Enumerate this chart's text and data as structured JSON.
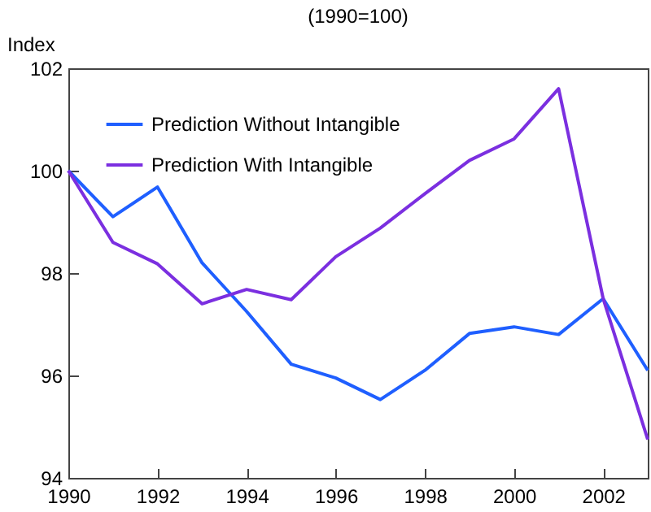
{
  "chart_data": {
    "type": "line",
    "title": "(1990=100)",
    "ylabel": "Index",
    "x": [
      1990,
      1991,
      1992,
      1993,
      1994,
      1995,
      1996,
      1997,
      1998,
      1999,
      2000,
      2001,
      2002,
      2003
    ],
    "series": [
      {
        "name": "Prediction Without Intangible",
        "color": "#1f5fff",
        "values": [
          100,
          99.1,
          99.68,
          98.2,
          97.25,
          96.22,
          95.95,
          95.53,
          96.1,
          96.82,
          96.95,
          96.8,
          97.5,
          96.1
        ]
      },
      {
        "name": "Prediction With Intangible",
        "color": "#7b2fe0",
        "values": [
          100,
          98.6,
          98.18,
          97.4,
          97.68,
          97.48,
          98.32,
          98.88,
          99.55,
          100.2,
          100.62,
          101.6,
          97.5,
          94.75
        ]
      }
    ],
    "xlim": [
      1990,
      2003
    ],
    "xticks": [
      1990,
      1992,
      1994,
      1996,
      1998,
      2000,
      2002
    ],
    "ylim": [
      94,
      102
    ],
    "yticks": [
      94,
      96,
      98,
      100,
      102
    ],
    "grid": false,
    "legend": "top left",
    "marker": "none",
    "line_style": "solid"
  }
}
